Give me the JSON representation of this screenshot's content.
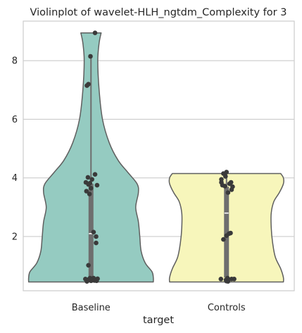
{
  "chart_data": {
    "type": "violin",
    "title": "Violinplot of wavelet-HLH_ngtdm_Complexity for 3",
    "xlabel": "target",
    "ylabel": "",
    "categories": [
      "Baseline",
      "Controls"
    ],
    "yticks": [
      2,
      4,
      6,
      8
    ],
    "ylim": [
      0.15,
      9.35
    ],
    "grid": "y",
    "colors": {
      "violins": [
        "#95cbc1",
        "#f7f6bb"
      ],
      "edge": "#5f5f5f",
      "points": "#3a3a3a",
      "box": "#6e6e6e",
      "median": "#ffffff"
    },
    "series": [
      {
        "name": "Baseline",
        "min": 0.45,
        "q1": 0.55,
        "median": 2.1,
        "q3": 3.8,
        "max": 8.15,
        "violin_top": 8.95,
        "violin_bottom": 0.45,
        "profile": [
          [
            0.45,
            0.92
          ],
          [
            0.6,
            0.92
          ],
          [
            0.8,
            0.9
          ],
          [
            1.1,
            0.8
          ],
          [
            1.5,
            0.74
          ],
          [
            2.0,
            0.72
          ],
          [
            2.5,
            0.7
          ],
          [
            3.0,
            0.66
          ],
          [
            3.5,
            0.7
          ],
          [
            3.8,
            0.68
          ],
          [
            4.2,
            0.54
          ],
          [
            4.6,
            0.4
          ],
          [
            5.2,
            0.27
          ],
          [
            6.0,
            0.17
          ],
          [
            7.0,
            0.12
          ],
          [
            8.0,
            0.1
          ],
          [
            8.6,
            0.12
          ],
          [
            8.95,
            0.15
          ]
        ],
        "points": [
          [
            -0.08,
            0.47
          ],
          [
            -0.05,
            0.53
          ],
          [
            -0.02,
            0.58
          ],
          [
            0.0,
            0.49
          ],
          [
            0.03,
            0.51
          ],
          [
            0.05,
            0.58
          ],
          [
            0.08,
            0.53
          ],
          [
            0.11,
            0.49
          ],
          [
            0.13,
            0.56
          ],
          [
            -0.11,
            0.55
          ],
          [
            0.07,
            0.5
          ],
          [
            -0.05,
            1.02
          ],
          [
            0.1,
            1.78
          ],
          [
            0.1,
            2.0
          ],
          [
            0.05,
            2.15
          ],
          [
            -0.09,
            3.55
          ],
          [
            -0.03,
            3.45
          ],
          [
            0.0,
            3.65
          ],
          [
            0.12,
            3.75
          ],
          [
            -0.1,
            3.85
          ],
          [
            -0.05,
            3.78
          ],
          [
            -0.02,
            3.82
          ],
          [
            0.02,
            3.95
          ],
          [
            -0.06,
            4.02
          ],
          [
            0.08,
            4.12
          ],
          [
            -0.08,
            7.15
          ],
          [
            -0.05,
            7.2
          ],
          [
            -0.01,
            8.15
          ],
          [
            0.08,
            8.95
          ]
        ]
      },
      {
        "name": "Controls",
        "min": 0.45,
        "q1": 0.6,
        "median": 2.8,
        "q3": 3.7,
        "max": 4.2,
        "violin_top": 4.15,
        "violin_bottom": 0.45,
        "profile": [
          [
            0.45,
            0.84
          ],
          [
            0.6,
            0.84
          ],
          [
            0.9,
            0.8
          ],
          [
            1.3,
            0.72
          ],
          [
            1.8,
            0.68
          ],
          [
            2.3,
            0.66
          ],
          [
            2.8,
            0.66
          ],
          [
            3.2,
            0.7
          ],
          [
            3.5,
            0.78
          ],
          [
            3.8,
            0.84
          ],
          [
            4.0,
            0.84
          ],
          [
            4.15,
            0.8
          ]
        ],
        "points": [
          [
            -0.11,
            0.55
          ],
          [
            -0.01,
            0.52
          ],
          [
            0.02,
            0.58
          ],
          [
            0.0,
            0.48
          ],
          [
            0.1,
            0.55
          ],
          [
            0.15,
            0.55
          ],
          [
            0.03,
            0.47
          ],
          [
            -0.06,
            1.9
          ],
          [
            0.05,
            2.1
          ],
          [
            0.08,
            2.12
          ],
          [
            0.0,
            2.03
          ],
          [
            -0.08,
            3.75
          ],
          [
            -0.03,
            3.72
          ],
          [
            0.03,
            3.5
          ],
          [
            0.1,
            3.6
          ],
          [
            0.12,
            3.7
          ],
          [
            -0.1,
            3.85
          ],
          [
            -0.1,
            3.95
          ],
          [
            0.06,
            3.8
          ],
          [
            0.09,
            3.85
          ],
          [
            -0.06,
            4.15
          ],
          [
            -0.02,
            4.05
          ],
          [
            0.0,
            4.2
          ]
        ]
      }
    ]
  }
}
